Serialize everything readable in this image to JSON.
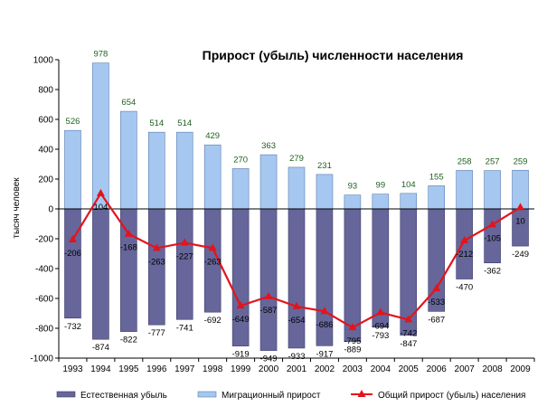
{
  "chart_data": {
    "type": "bar",
    "title": "Прирост (убыль) численности населения",
    "ylabel": "тысяч человек",
    "xlabel": "",
    "ylim": [
      -1000,
      1000
    ],
    "yticks": [
      1000,
      800,
      600,
      400,
      200,
      0,
      -200,
      -400,
      -600,
      -800,
      -1000
    ],
    "grid": false,
    "legend_position": "bottom",
    "categories": [
      "1993",
      "1994",
      "1995",
      "1996",
      "1997",
      "1998",
      "1999",
      "2000",
      "2001",
      "2002",
      "2003",
      "2004",
      "2005",
      "2006",
      "2007",
      "2008",
      "2009"
    ],
    "series": [
      {
        "name": "Естественная убыль",
        "type": "bar",
        "color": "#66669a",
        "label_color": "#000000",
        "values": [
          -732,
          -874,
          -822,
          -777,
          -741,
          -692,
          -919,
          -949,
          -933,
          -917,
          -889,
          -793,
          -847,
          -687,
          -470,
          -362,
          -249
        ]
      },
      {
        "name": "Миграционный прирост",
        "type": "bar",
        "color": "#a6c8f0",
        "label_color": "#1f5f1f",
        "values": [
          526,
          978,
          654,
          514,
          514,
          429,
          270,
          363,
          279,
          231,
          93,
          99,
          104,
          155,
          258,
          257,
          259
        ]
      },
      {
        "name": "Общий прирост (убыль) населения",
        "type": "line",
        "color": "#e3141c",
        "label_color": "#000000",
        "values": [
          -206,
          104,
          -168,
          -263,
          -227,
          -263,
          -649,
          -587,
          -654,
          -686,
          -795,
          -694,
          -742,
          -533,
          -212,
          -105,
          10
        ]
      }
    ]
  }
}
